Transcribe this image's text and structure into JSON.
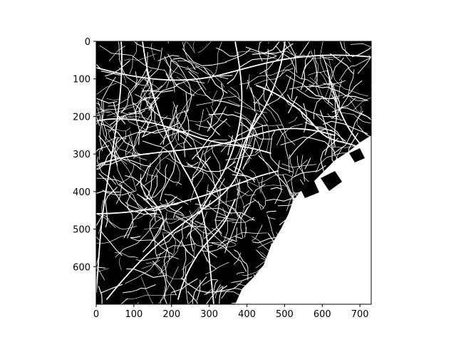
{
  "figure": {
    "background": "#ffffff",
    "image_background": "#000000",
    "road_color": "#ffffff",
    "water_color": "#ffffff"
  },
  "axes": {
    "x": {
      "range": [
        0,
        730
      ],
      "ticks": [
        0,
        100,
        200,
        300,
        400,
        500,
        600,
        700
      ],
      "tick_labels": [
        "0",
        "100",
        "200",
        "300",
        "400",
        "500",
        "600",
        "700"
      ]
    },
    "y": {
      "range": [
        0,
        700
      ],
      "inverted": true,
      "ticks": [
        0,
        100,
        200,
        300,
        400,
        500,
        600
      ],
      "tick_labels": [
        "0",
        "100",
        "200",
        "300",
        "400",
        "500",
        "600"
      ]
    }
  },
  "image": {
    "description_type": "binary road network raster",
    "colormap": "gray"
  }
}
